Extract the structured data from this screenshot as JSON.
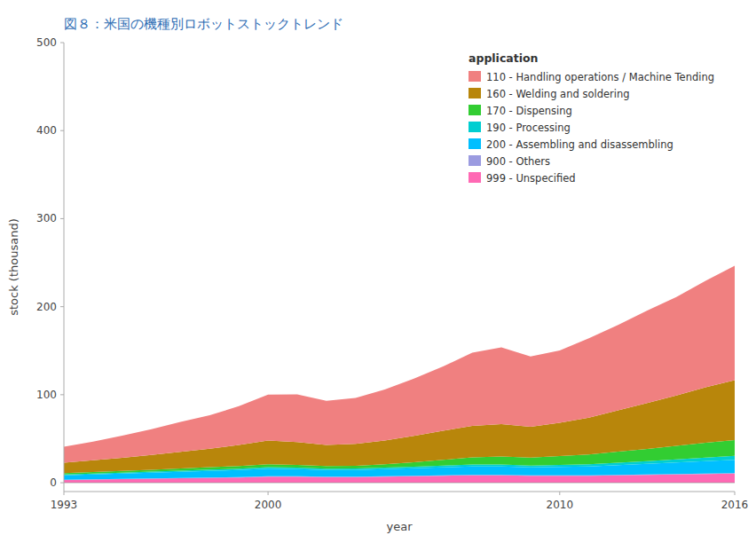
{
  "chart_data": {
    "type": "area",
    "stacked": true,
    "title": "図８：米国の機種別ロボットストックトレンド",
    "x_label": "year",
    "y_label": "stock (thousand)",
    "legend_title": "application",
    "legend": "upper right",
    "grid": false,
    "x": [
      1993,
      1994,
      1995,
      1996,
      1997,
      1998,
      1999,
      2000,
      2001,
      2002,
      2003,
      2004,
      2005,
      2006,
      2007,
      2008,
      2009,
      2010,
      2011,
      2012,
      2013,
      2014,
      2015,
      2016
    ],
    "series": [
      {
        "name": "999 - Unspecified",
        "color": "#FF69B4",
        "values": [
          3.0,
          3.5,
          4.0,
          4.5,
          5.0,
          5.5,
          6.0,
          7.0,
          7.0,
          6.5,
          6.5,
          7.0,
          7.5,
          8.0,
          8.5,
          8.5,
          8.0,
          8.0,
          8.0,
          8.5,
          9.0,
          9.5,
          10.0,
          10.5
        ]
      },
      {
        "name": "900 - Others",
        "color": "#9B9BE0",
        "values": [
          0.3,
          0.3,
          0.3,
          0.3,
          0.4,
          0.4,
          0.4,
          0.5,
          0.5,
          0.5,
          0.5,
          0.5,
          0.5,
          0.5,
          0.5,
          0.5,
          0.5,
          0.5,
          0.5,
          0.5,
          0.5,
          0.5,
          0.5,
          0.5
        ]
      },
      {
        "name": "200 - Assembling and disassembling",
        "color": "#00BFFF",
        "values": [
          5.0,
          5.5,
          6.0,
          6.5,
          7.0,
          7.5,
          8.0,
          8.5,
          8.0,
          7.5,
          7.5,
          8.0,
          8.5,
          9.0,
          9.5,
          9.5,
          9.0,
          9.5,
          10.0,
          11.0,
          12.0,
          13.0,
          14.0,
          15.0
        ]
      },
      {
        "name": "190 - Processing",
        "color": "#00CED1",
        "values": [
          1.0,
          1.1,
          1.2,
          1.3,
          1.4,
          1.5,
          1.6,
          1.7,
          1.6,
          1.5,
          1.6,
          1.7,
          1.8,
          2.0,
          2.2,
          2.2,
          2.0,
          2.2,
          2.5,
          2.8,
          3.0,
          3.5,
          4.0,
          4.5
        ]
      },
      {
        "name": "170 - Dispensing",
        "color": "#32CD32",
        "values": [
          1.5,
          1.7,
          1.9,
          2.1,
          2.4,
          2.7,
          3.0,
          3.3,
          3.2,
          3.0,
          3.2,
          3.8,
          5.0,
          6.5,
          8.0,
          9.0,
          9.0,
          10.0,
          11.0,
          12.5,
          14.0,
          15.5,
          17.0,
          18.0
        ]
      },
      {
        "name": "160 - Welding and soldering",
        "color": "#B8860B",
        "values": [
          12.0,
          13.5,
          15.0,
          17.0,
          19.0,
          21.0,
          24.0,
          27.0,
          26.0,
          24.0,
          25.0,
          27.0,
          30.0,
          33.0,
          36.0,
          37.0,
          35.0,
          38.0,
          42.0,
          47.0,
          52.0,
          57.0,
          63.0,
          68.0
        ]
      },
      {
        "name": "110 - Handling operations / Machine Tending",
        "color": "#F08080",
        "values": [
          18.0,
          21.0,
          25.0,
          29.0,
          34.0,
          38.0,
          44.0,
          52.0,
          54.0,
          50.0,
          52.0,
          58.0,
          65.0,
          73.0,
          83.0,
          87.0,
          80.0,
          82.0,
          90.0,
          97.0,
          105.0,
          112.0,
          121.0,
          130.0
        ]
      }
    ],
    "xlim": [
      1993,
      2016
    ],
    "xticks": [
      1993,
      2000,
      2010,
      2016
    ],
    "ylim": [
      -10,
      500
    ],
    "yticks": [
      0,
      100,
      200,
      300,
      400,
      500
    ]
  }
}
